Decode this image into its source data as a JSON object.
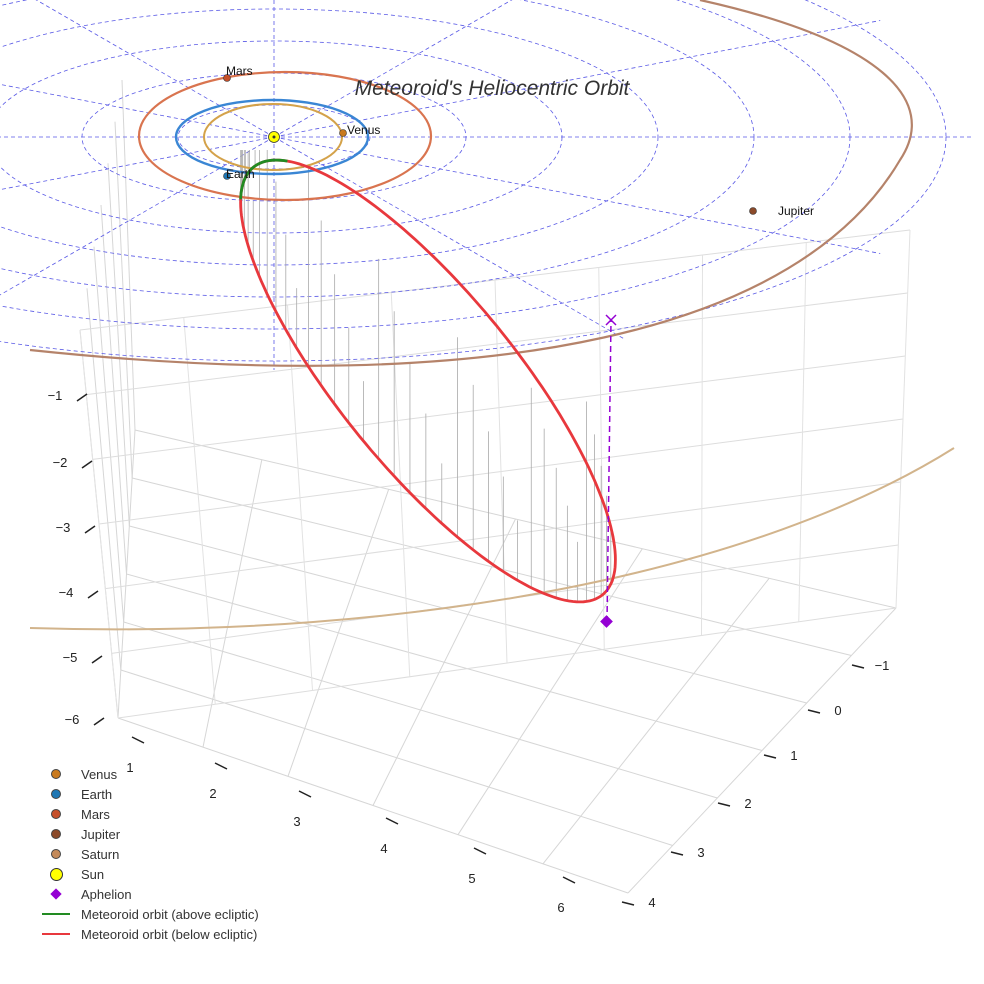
{
  "chart_data": {
    "type": "3d-orbit",
    "title": "Meteoroid's Heliocentric Orbit",
    "axes": {
      "x": {
        "ticks": [
          "1",
          "2",
          "3",
          "4",
          "5",
          "6"
        ]
      },
      "y": {
        "ticks": [
          "−1",
          "0",
          "1",
          "2",
          "3",
          "4"
        ]
      },
      "z": {
        "ticks": [
          "−1",
          "−2",
          "−3",
          "−4",
          "−5",
          "−6"
        ]
      }
    },
    "planets": [
      {
        "name": "Venus",
        "color": "#c97a1f",
        "orbit_color": "#d4a24a",
        "labeled": true
      },
      {
        "name": "Earth",
        "color": "#1f77b4",
        "orbit_color": "#3a86d4",
        "labeled": true
      },
      {
        "name": "Mars",
        "color": "#c6502b",
        "orbit_color": "#d9744f",
        "labeled": true
      },
      {
        "name": "Jupiter",
        "color": "#8b4a2a",
        "orbit_color": "#b5836a",
        "labeled": true
      },
      {
        "name": "Saturn",
        "color": "#c48a5a",
        "orbit_color": "#d2b48c",
        "labeled": false
      }
    ],
    "sun": {
      "name": "Sun",
      "color": "#ffff00"
    },
    "aphelion": {
      "name": "Aphelion",
      "color": "#9400d3"
    },
    "meteoroid_orbit": [
      {
        "name": "Meteoroid orbit (above ecliptic)",
        "color": "#228b22"
      },
      {
        "name": "Meteoroid orbit (below ecliptic)",
        "color": "#e8383d"
      }
    ],
    "grid": true,
    "legend_position": "bottom-left"
  },
  "legend": [
    {
      "label": "Venus",
      "symbol": "dot",
      "color": "#c97a1f"
    },
    {
      "label": "Earth",
      "symbol": "dot",
      "color": "#1f77b4"
    },
    {
      "label": "Mars",
      "symbol": "dot",
      "color": "#c6502b"
    },
    {
      "label": "Jupiter",
      "symbol": "dot",
      "color": "#8b4a2a"
    },
    {
      "label": "Saturn",
      "symbol": "dot",
      "color": "#c48a5a"
    },
    {
      "label": "Sun",
      "symbol": "sun",
      "color": "#ffff00"
    },
    {
      "label": "Aphelion",
      "symbol": "diamond",
      "color": "#9400d3"
    },
    {
      "label": "Meteoroid orbit (above ecliptic)",
      "symbol": "line",
      "color": "#228b22"
    },
    {
      "label": "Meteoroid orbit (below ecliptic)",
      "symbol": "line",
      "color": "#e8383d"
    }
  ]
}
